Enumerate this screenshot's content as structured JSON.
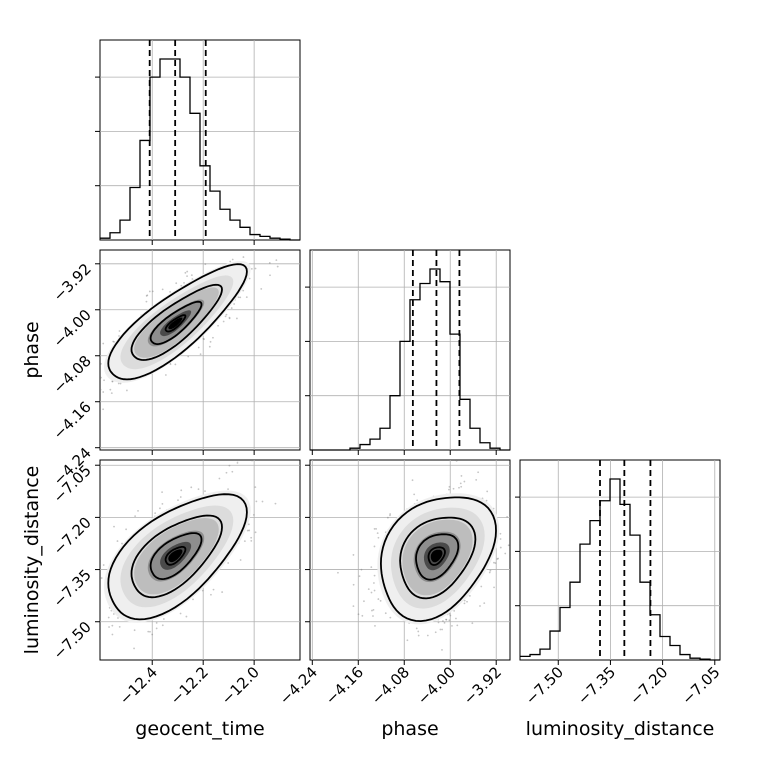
{
  "chart_data": {
    "type": "corner",
    "parameters": [
      "geocent_time",
      "phase",
      "luminosity_distance"
    ],
    "axis_labels": {
      "geocent_time": "geocent_time",
      "phase": "phase",
      "luminosity_distance": "luminosity_distance"
    },
    "ranges": {
      "geocent_time": [
        -12.605,
        -11.82
      ],
      "phase": [
        -4.244,
        -3.896
      ],
      "luminosity_distance": [
        -7.61,
        -7.035
      ]
    },
    "ticks": {
      "geocent_time": [
        -12.4,
        -12.2,
        -12.0
      ],
      "phase": [
        -4.24,
        -4.16,
        -4.08,
        -4.0,
        -3.92
      ],
      "luminosity_distance": [
        -7.5,
        -7.35,
        -7.2,
        -7.05
      ]
    },
    "tick_labels": {
      "geocent_time": [
        "−12.4",
        "−12.2",
        "−12.0"
      ],
      "phase": [
        "−4.24",
        "−4.16",
        "−4.08",
        "−4.00",
        "−3.92"
      ],
      "luminosity_distance": [
        "−7.50",
        "−7.35",
        "−7.20",
        "−7.05"
      ]
    },
    "quantiles": {
      "geocent_time": [
        -12.41,
        -12.31,
        -12.19
      ],
      "phase": [
        -4.065,
        -4.024,
        -3.984
      ],
      "luminosity_distance": [
        -7.38,
        -7.31,
        -7.235
      ]
    },
    "histograms": {
      "geocent_time": {
        "edges_range": [
          -12.605,
          -11.82
        ],
        "counts": [
          0.01,
          0.04,
          0.11,
          0.29,
          0.55,
          0.9,
          1.0,
          1.0,
          0.9,
          0.7,
          0.41,
          0.27,
          0.17,
          0.11,
          0.07,
          0.03,
          0.02,
          0.01,
          0.005,
          0.0
        ]
      },
      "phase": {
        "edges_range": [
          -4.244,
          -3.896
        ],
        "counts": [
          0.0,
          0.0,
          0.0,
          0.0,
          0.01,
          0.03,
          0.06,
          0.12,
          0.3,
          0.6,
          0.83,
          0.92,
          1.0,
          0.93,
          0.64,
          0.28,
          0.12,
          0.04,
          0.01,
          0.0
        ]
      },
      "luminosity_distance": {
        "edges_range": [
          -7.61,
          -7.035
        ],
        "counts": [
          0.02,
          0.03,
          0.06,
          0.16,
          0.29,
          0.43,
          0.64,
          0.77,
          0.88,
          1.0,
          0.86,
          0.69,
          0.43,
          0.25,
          0.13,
          0.08,
          0.03,
          0.01,
          0.005,
          0.0
        ]
      }
    },
    "correlations": {
      "phase|geocent_time": 0.82,
      "luminosity_distance|geocent_time": 0.6,
      "luminosity_distance|phase": 0.3
    },
    "grid": true,
    "colors": {
      "line": "#000000",
      "grid": "#b0b0b0",
      "points": "#7f7f7f",
      "density_dark": "#000000"
    }
  }
}
